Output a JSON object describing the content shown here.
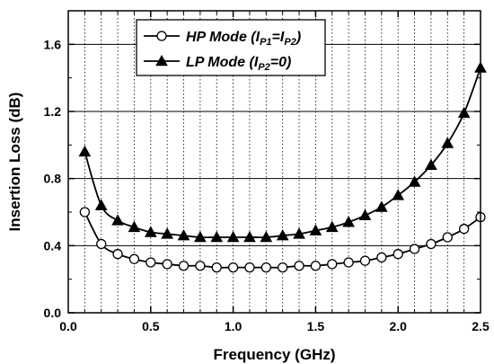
{
  "chart_data": {
    "type": "line",
    "xlabel": "Frequency (GHz)",
    "ylabel": "Insertion Loss (dB)",
    "xlim": [
      0.0,
      2.5
    ],
    "ylim": [
      0.0,
      1.8
    ],
    "x_ticks": [
      "0.0",
      "0.5",
      "1.0",
      "1.5",
      "2.0",
      "2.5"
    ],
    "y_ticks": [
      "0.0",
      "0.4",
      "0.8",
      "1.2",
      "1.6"
    ],
    "grid": {
      "x": "dotted",
      "y": "solid"
    },
    "legend_position": "top-left",
    "series": [
      {
        "name": "HP Mode (IP1=IP2)",
        "legend_parts": [
          "HP Mode (",
          "I",
          "P1",
          "=",
          "I",
          "P2",
          ")"
        ],
        "marker": "open-circle",
        "x": [
          0.1,
          0.2,
          0.3,
          0.4,
          0.5,
          0.6,
          0.7,
          0.8,
          0.9,
          1.0,
          1.1,
          1.2,
          1.3,
          1.4,
          1.5,
          1.6,
          1.7,
          1.8,
          1.9,
          2.0,
          2.1,
          2.2,
          2.3,
          2.4,
          2.5
        ],
        "y": [
          0.6,
          0.41,
          0.35,
          0.32,
          0.3,
          0.29,
          0.28,
          0.28,
          0.27,
          0.27,
          0.27,
          0.27,
          0.27,
          0.28,
          0.28,
          0.29,
          0.3,
          0.31,
          0.33,
          0.35,
          0.38,
          0.41,
          0.45,
          0.5,
          0.57
        ]
      },
      {
        "name": "LP Mode (IP2=0)",
        "legend_parts": [
          "LP Mode (",
          "I",
          "P2",
          "=0)"
        ],
        "marker": "filled-triangle",
        "x": [
          0.1,
          0.2,
          0.3,
          0.4,
          0.5,
          0.6,
          0.7,
          0.8,
          0.9,
          1.0,
          1.1,
          1.2,
          1.3,
          1.4,
          1.5,
          1.6,
          1.7,
          1.8,
          1.9,
          2.0,
          2.1,
          2.2,
          2.3,
          2.4,
          2.5
        ],
        "y": [
          0.96,
          0.64,
          0.55,
          0.51,
          0.48,
          0.47,
          0.46,
          0.45,
          0.45,
          0.45,
          0.45,
          0.45,
          0.46,
          0.47,
          0.49,
          0.51,
          0.54,
          0.58,
          0.63,
          0.7,
          0.78,
          0.88,
          1.01,
          1.19,
          1.46
        ]
      }
    ]
  }
}
